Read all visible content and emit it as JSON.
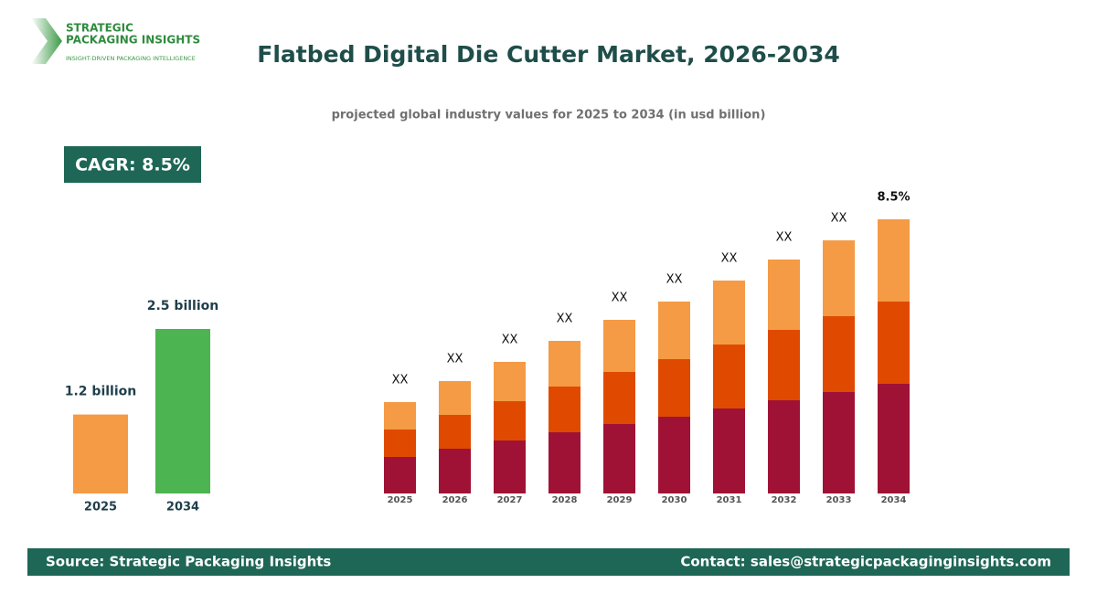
{
  "header": {
    "logo_line1": "STRATEGIC",
    "logo_line2": "PACKAGING INSIGHTS",
    "logo_tagline": "INSIGHT-DRIVEN PACKAGING INTELLIGENCE",
    "title": "Flatbed Digital Die Cutter Market, 2026-2034",
    "subtitle": "projected global industry values for 2025 to 2034 (in usd billion)",
    "cagr": "CAGR: 8.5%"
  },
  "chart_data": [
    {
      "type": "bar",
      "categories": [
        "2025",
        "2034"
      ],
      "values": [
        1.2,
        2.5
      ],
      "value_labels": [
        "1.2 billion",
        "2.5 billion"
      ],
      "colors": [
        "#f59a45",
        "#4cb450"
      ]
    },
    {
      "type": "stacked_bar",
      "categories": [
        "2025",
        "2026",
        "2027",
        "2028",
        "2029",
        "2030",
        "2031",
        "2032",
        "2033",
        "2034"
      ],
      "top_labels": [
        "XX",
        "XX",
        "XX",
        "XX",
        "XX",
        "XX",
        "XX",
        "XX",
        "XX",
        "8.5%"
      ],
      "series": [
        {
          "color": "#a01235",
          "values": [
            40,
            49,
            58,
            67,
            76,
            84,
            93,
            102,
            111,
            120
          ]
        },
        {
          "color": "#e04a00",
          "values": [
            30,
            37,
            43,
            50,
            57,
            63,
            70,
            77,
            83,
            90
          ]
        },
        {
          "color": "#f59a45",
          "values": [
            30,
            37,
            43,
            50,
            57,
            63,
            70,
            77,
            83,
            90
          ]
        }
      ]
    }
  ],
  "footer": {
    "source": "Source: Strategic Packaging Insights",
    "contact": "Contact: sales@strategicpackaginginsights.com"
  }
}
